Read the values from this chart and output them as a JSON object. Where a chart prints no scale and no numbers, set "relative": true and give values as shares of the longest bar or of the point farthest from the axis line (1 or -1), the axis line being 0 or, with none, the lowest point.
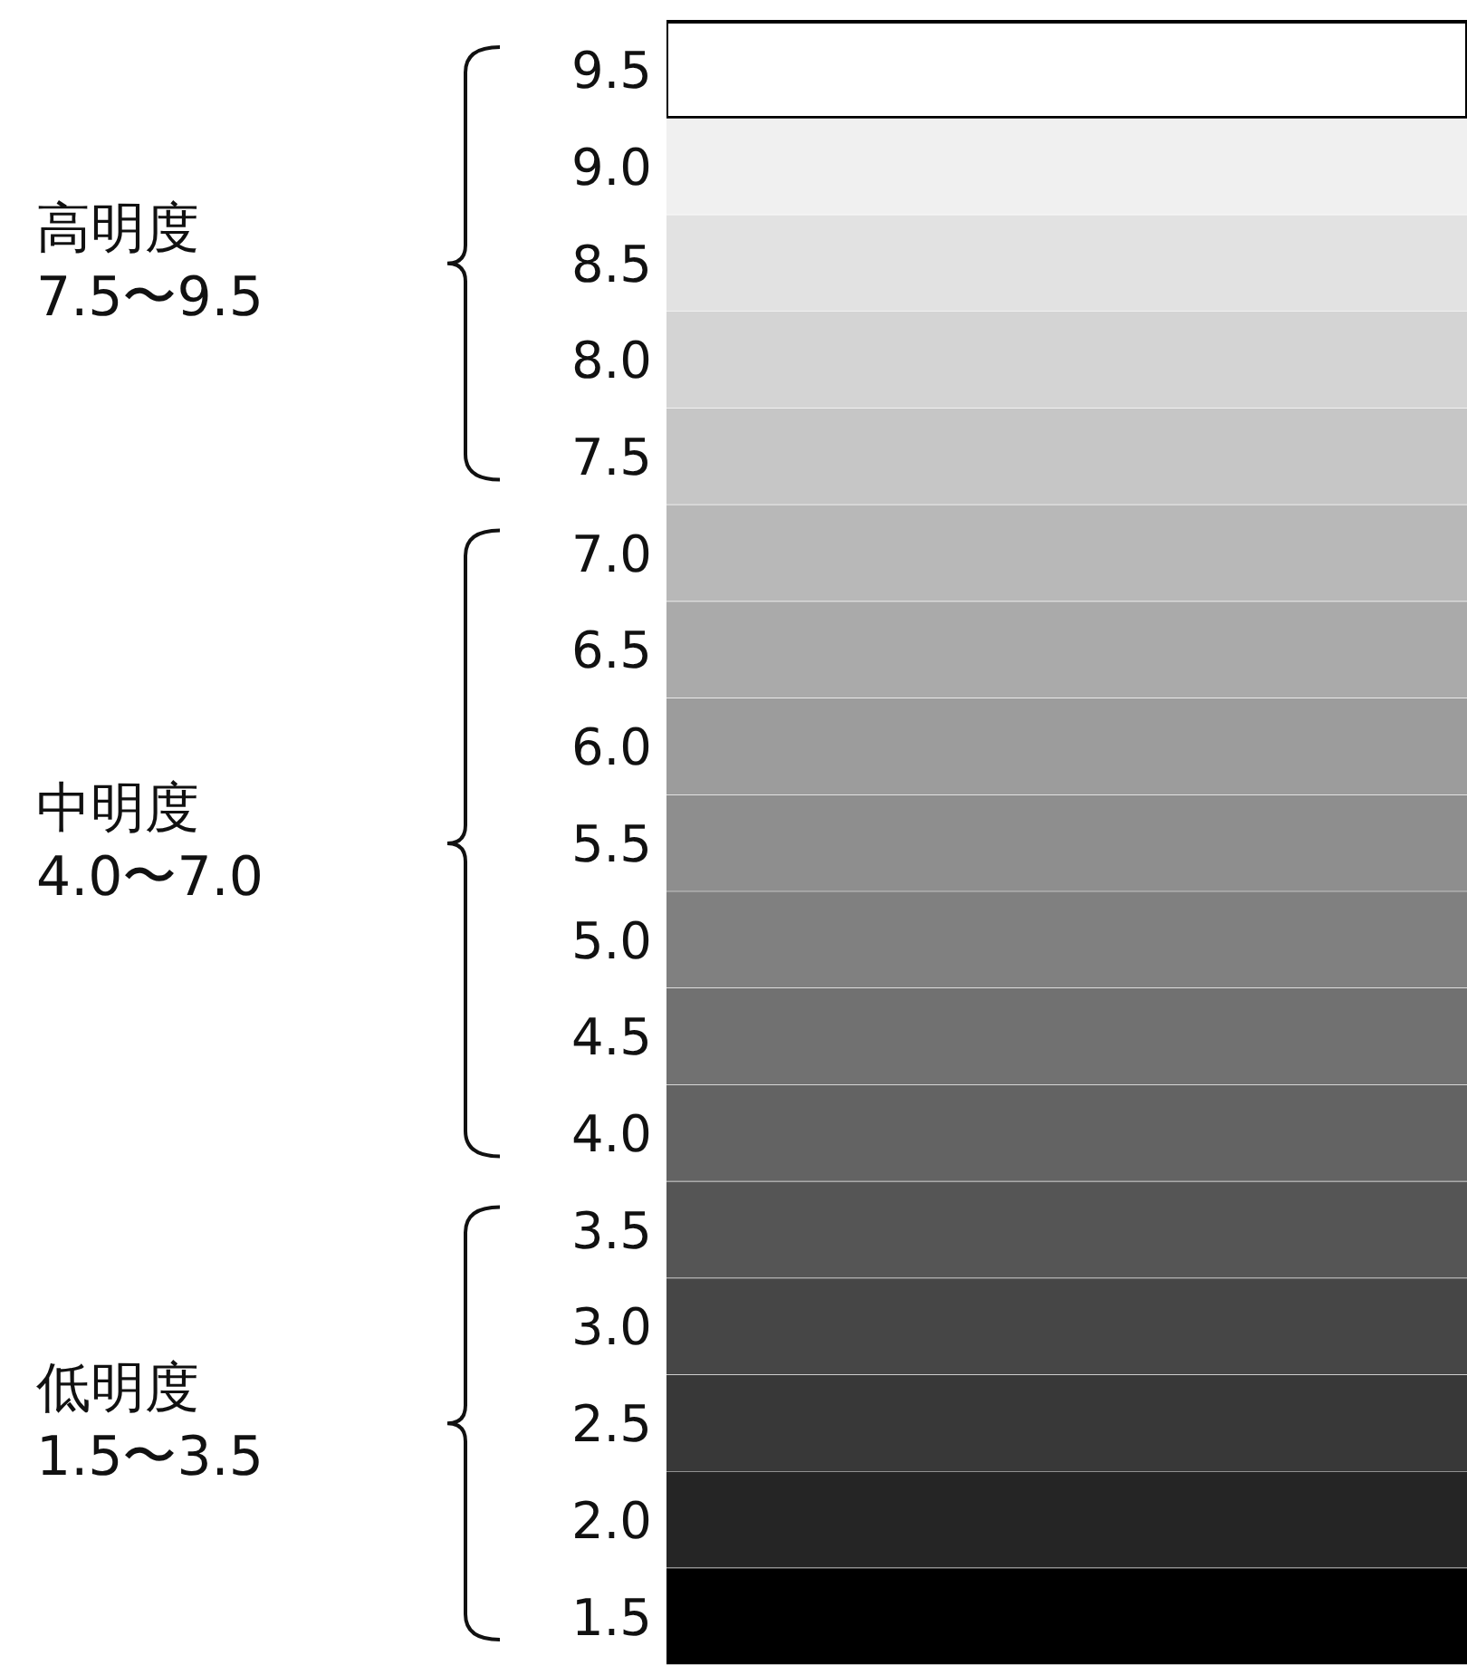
{
  "chart_data": {
    "type": "bar",
    "orientation": "horizontal",
    "relative": true,
    "categories": [
      "9.5",
      "9.0",
      "8.5",
      "8.0",
      "7.5",
      "7.0",
      "6.5",
      "6.0",
      "5.5",
      "5.0",
      "4.5",
      "4.0",
      "3.5",
      "3.0",
      "2.5",
      "2.0",
      "1.5"
    ],
    "values": [
      1,
      1,
      1,
      1,
      1,
      1,
      1,
      1,
      1,
      1,
      1,
      1,
      1,
      1,
      1,
      1,
      1
    ],
    "colors": [
      "#ffffff",
      "#f0f0f0",
      "#e2e2e2",
      "#d4d4d4",
      "#c6c6c6",
      "#b8b8b8",
      "#aaaaaa",
      "#9c9c9c",
      "#8e8e8e",
      "#808080",
      "#717171",
      "#636363",
      "#555555",
      "#464646",
      "#383838",
      "#252525",
      "#000000"
    ],
    "annotations": [
      "高明度\n7.5〜9.5",
      "中明度\n4.0〜7.0",
      "低明度\n1.5〜3.5"
    ]
  }
}
